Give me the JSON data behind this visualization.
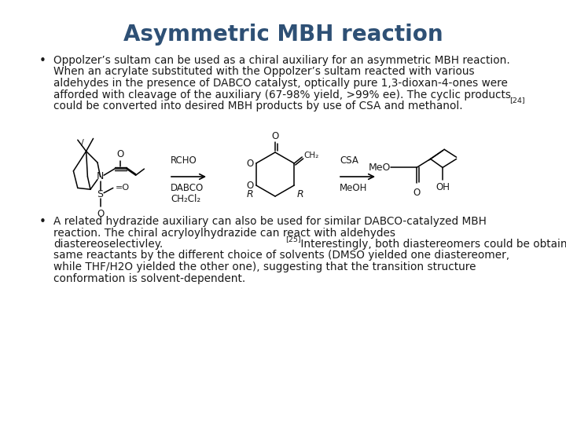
{
  "title": "Asymmetric MBH reaction",
  "title_color": "#2E5075",
  "title_fontsize": 20,
  "title_weight": "bold",
  "background_color": "#ffffff",
  "bullet1_lines": [
    "Oppolzer’s sultam can be used as a chiral auxiliary for an asymmetric MBH reaction.",
    "When an acrylate substituted with the Oppolzer’s sultam reacted with various",
    "aldehydes in the presence of DABCO catalyst, optically pure 1,3-dioxan-4-ones were",
    "afforded with cleavage of the auxiliary (67-98% yield, >99% ee). The cyclic products",
    "could be converted into desired MBH products by use of CSA and methanol."
  ],
  "bullet1_ref": "[24]",
  "bullet2_lines": [
    "A related hydrazide auxiliary can also be used for similar DABCO-catalyzed MBH",
    "reaction. The chiral acryloylhydrazide can react with aldehydes",
    "diastereoselectivley."
  ],
  "bullet2_ref": "[25]",
  "bullet2_cont_lines": [
    " Interestingly, both diastereomers could be obtained from the",
    "same reactants by the different choice of solvents (DMSO yielded one diastereomer,",
    "while THF/H2O yielded the other one), suggesting that the transition structure",
    "conformation is solvent-dependent."
  ],
  "text_fontsize": 9.8,
  "text_color": "#1a1a1a",
  "figwidth": 7.2,
  "figheight": 5.4,
  "dpi": 100
}
